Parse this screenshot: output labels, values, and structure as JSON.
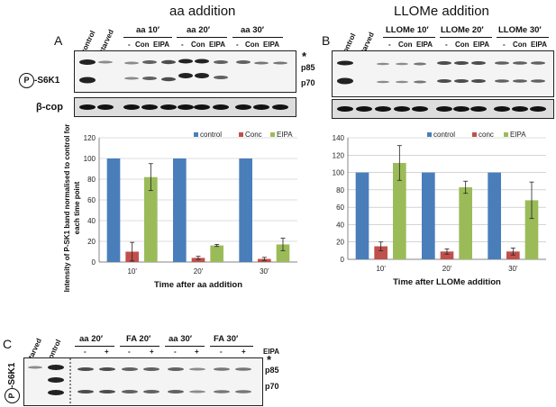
{
  "panelA": {
    "title": "aa addition",
    "letter": "A",
    "lanes_top": [
      "control",
      "starved"
    ],
    "groups": [
      "aa 10′",
      "aa 20′",
      "aa 30′"
    ],
    "sub": [
      "-",
      "Con",
      "EIPA"
    ],
    "protein": "-S6K1",
    "phospho": "P",
    "loading": "β-cop"
  },
  "panelB": {
    "title": "LLOMe addition",
    "letter": "B",
    "lanes_top": [
      "control",
      "starved"
    ],
    "groups": [
      "LLOMe 10′",
      "LLOMe 20′",
      "LLOMe 30′"
    ],
    "sub": [
      "-",
      "Con",
      "EIPA"
    ],
    "bands": [
      "*",
      "p85",
      "p70"
    ]
  },
  "panelC": {
    "letter": "C",
    "lanes_top": [
      "starved",
      "control"
    ],
    "groups": [
      "aa 20′",
      "FA 20′",
      "aa 30′",
      "FA 30′"
    ],
    "signs": [
      "-",
      "+"
    ],
    "eipa": "EIPA",
    "protein": "-S6K1",
    "phospho": "P",
    "bands": [
      "*",
      "p85",
      "p70"
    ]
  },
  "chart_data": [
    {
      "type": "bar",
      "categories": [
        "10'",
        "20'",
        "30'"
      ],
      "series": [
        {
          "name": "control",
          "color": "#4a7ebb",
          "values": [
            100,
            100,
            100
          ],
          "errors": [
            0,
            0,
            0
          ]
        },
        {
          "name": "Conc",
          "color": "#c0504d",
          "values": [
            10,
            4,
            3
          ],
          "errors": [
            9,
            1.5,
            1.5
          ]
        },
        {
          "name": "EIPA",
          "color": "#9bbb59",
          "values": [
            82,
            16,
            17
          ],
          "errors": [
            13,
            1,
            6
          ]
        }
      ],
      "ylim": [
        0,
        120
      ],
      "yticks": [
        0,
        20,
        40,
        60,
        80,
        100,
        120
      ],
      "xlabel": "Time after aa addition",
      "ylabel": "Intensity of P-SK1 band normalised to control for each time point",
      "legend": "top-right",
      "grid": true
    },
    {
      "type": "bar",
      "categories": [
        "10'",
        "20'",
        "30'"
      ],
      "series": [
        {
          "name": "control",
          "color": "#4a7ebb",
          "values": [
            100,
            100,
            100
          ],
          "errors": [
            0,
            0,
            0
          ]
        },
        {
          "name": "conc",
          "color": "#c0504d",
          "values": [
            15,
            9,
            9
          ],
          "errors": [
            5,
            3,
            4
          ]
        },
        {
          "name": "EIPA",
          "color": "#9bbb59",
          "values": [
            111,
            83,
            68
          ],
          "errors": [
            20,
            7,
            21
          ]
        }
      ],
      "ylim": [
        0,
        140
      ],
      "yticks": [
        0,
        20,
        40,
        60,
        80,
        100,
        120,
        140
      ],
      "xlabel": "Time after LLOMe addition",
      "ylabel": "",
      "legend": "top-right",
      "grid": true
    }
  ]
}
